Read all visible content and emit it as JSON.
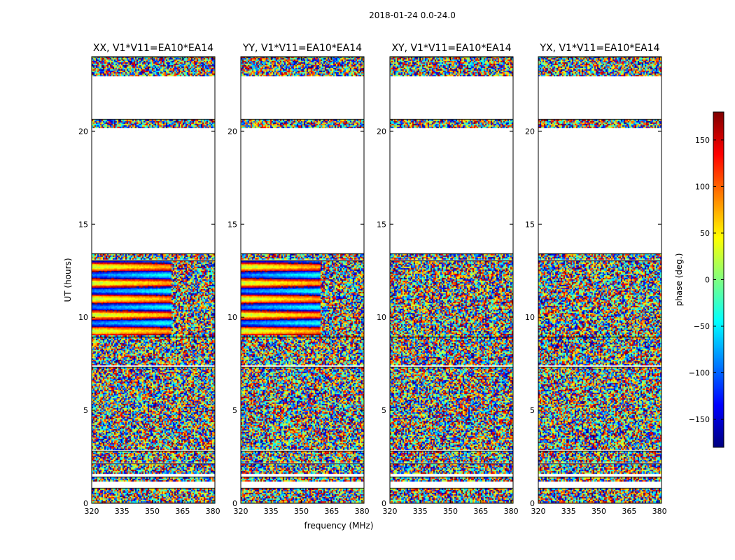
{
  "suptitle": "2018-01-24 0.0-24.0",
  "chart_data": [
    {
      "type": "heatmap",
      "title": "XX, V1*V11=EA10*EA14",
      "xlabel": "",
      "ylabel": "UT (hours)",
      "xlim": [
        320,
        381
      ],
      "ylim": [
        0,
        24
      ],
      "x_ticks": [
        "320",
        "335",
        "350",
        "365",
        "380"
      ],
      "y_ticks": [
        "0",
        "5",
        "10",
        "15",
        "20"
      ],
      "coherent_band_hours": [
        9.0,
        13.0
      ],
      "coherent_band_freq_max_mhz": 359
    },
    {
      "type": "heatmap",
      "title": "YY, V1*V11=EA10*EA14",
      "xlabel": "frequency (MHz)",
      "ylabel": "",
      "xlim": [
        320,
        381
      ],
      "ylim": [
        0,
        24
      ],
      "x_ticks": [
        "320",
        "335",
        "350",
        "365",
        "380"
      ],
      "y_ticks": [
        "0",
        "5",
        "10",
        "15",
        "20"
      ],
      "coherent_band_hours": [
        9.0,
        13.0
      ],
      "coherent_band_freq_max_mhz": 359
    },
    {
      "type": "heatmap",
      "title": "XY, V1*V11=EA10*EA14",
      "xlabel": "",
      "ylabel": "",
      "xlim": [
        320,
        381
      ],
      "ylim": [
        0,
        24
      ],
      "x_ticks": [
        "320",
        "335",
        "350",
        "365",
        "380"
      ],
      "y_ticks": [
        "0",
        "5",
        "10",
        "15",
        "20"
      ],
      "coherent_band_hours": null,
      "coherent_band_freq_max_mhz": null
    },
    {
      "type": "heatmap",
      "title": "YX, V1*V11=EA10*EA14",
      "xlabel": "",
      "ylabel": "",
      "xlim": [
        320,
        381
      ],
      "ylim": [
        0,
        24
      ],
      "x_ticks": [
        "320",
        "335",
        "350",
        "365",
        "380"
      ],
      "y_ticks": [
        "0",
        "5",
        "10",
        "15",
        "20"
      ],
      "coherent_band_hours": null,
      "coherent_band_freq_max_mhz": null
    }
  ],
  "data_segments_hours": [
    [
      0.0,
      0.8
    ],
    [
      1.2,
      1.4
    ],
    [
      1.6,
      2.1
    ],
    [
      2.2,
      2.8
    ],
    [
      2.9,
      7.3
    ],
    [
      7.4,
      8.9
    ],
    [
      9.0,
      13.0
    ],
    [
      13.1,
      13.4
    ],
    [
      20.2,
      20.6
    ],
    [
      23.0,
      24.0
    ]
  ],
  "colorbar": {
    "label": "phase (deg.)",
    "range": [
      -180,
      180
    ],
    "ticks": [
      "150",
      "100",
      "50",
      "0",
      "−50",
      "−100",
      "−150"
    ],
    "tick_values": [
      150,
      100,
      50,
      0,
      -50,
      -100,
      -150
    ],
    "colormap": "jet"
  }
}
